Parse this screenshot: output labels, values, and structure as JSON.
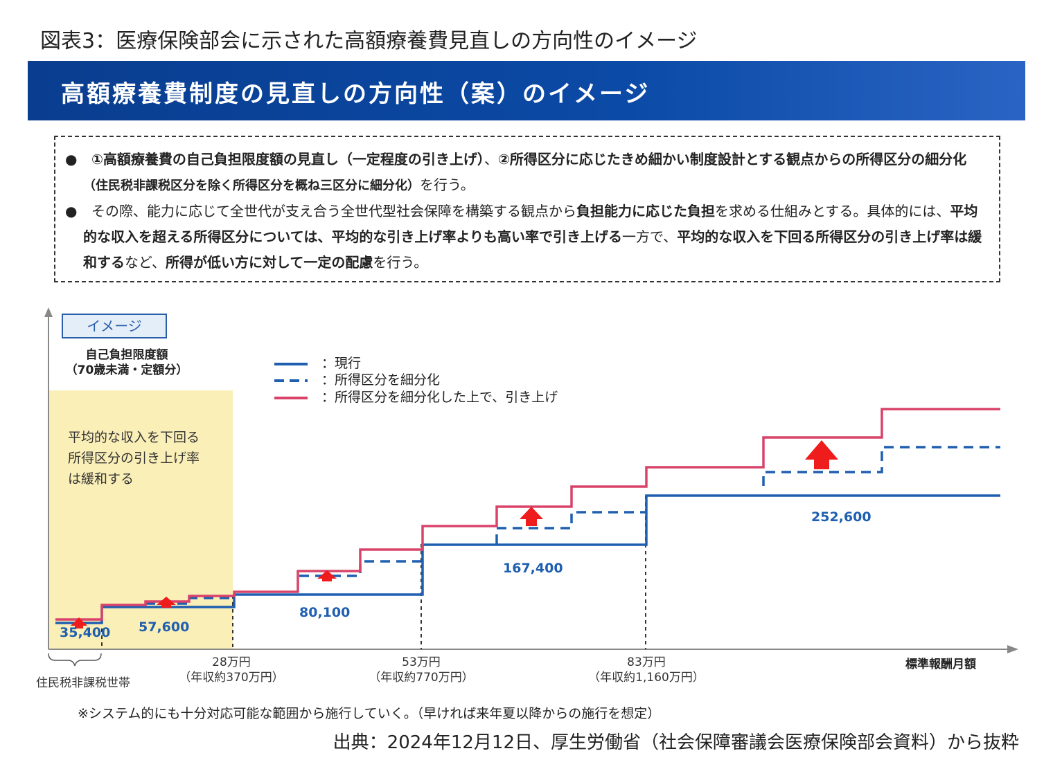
{
  "figure_title": "図表3：医療保険部会に示された高額療養費見直しの方向性のイメージ",
  "banner_title": "高額療養費制度の見直しの方向性（案）のイメージ",
  "notes": [
    {
      "bullet": "●",
      "parts": [
        {
          "text": "①高額療養費の自己負担限度額の見直し（一定程度の引き上げ）",
          "style": "b"
        },
        {
          "text": "、",
          "style": ""
        },
        {
          "text": "②所得区分に応じたきめ細かい制度設計とする観点からの所得区分の細分化",
          "style": "b"
        },
        {
          "text": "（住民税非課税区分を除く所得区分を概ね三区分に細分化）",
          "style": "small-b"
        },
        {
          "text": "を行う。",
          "style": ""
        }
      ]
    },
    {
      "bullet": "●",
      "parts": [
        {
          "text": "その際、能力に応じて全世代が支え合う全世代型社会保障を構築する観点から",
          "style": ""
        },
        {
          "text": "負担能力に応じた負担",
          "style": "b"
        },
        {
          "text": "を求める仕組みとする。具体的には、",
          "style": ""
        },
        {
          "text": "平均的な収入を超える所得区分については、平均的な引き上げ率よりも高い率で引き上げる",
          "style": "b"
        },
        {
          "text": "一方で、",
          "style": ""
        },
        {
          "text": "平均的な収入を下回る所得区分の引き上げ率は緩和する",
          "style": "b"
        },
        {
          "text": "など、",
          "style": ""
        },
        {
          "text": "所得が低い方に対して一定の配慮",
          "style": "b"
        },
        {
          "text": "を行う。",
          "style": ""
        }
      ]
    }
  ],
  "chart": {
    "image_label": "イメージ",
    "y_label_line1": "自己負担限度額",
    "y_label_line2": "（70歳未満・定額分）",
    "x_label": "標準報酬月額",
    "legend": [
      {
        "label": "：現行",
        "style": "solid",
        "color": "#1f5fb0"
      },
      {
        "label": "：所得区分を細分化",
        "style": "dashed",
        "color": "#1f5fb0"
      },
      {
        "label": "：所得区分を細分化した上で、引き上げ",
        "style": "solid",
        "color": "#d9436a"
      }
    ],
    "highlight_text": [
      "平均的な収入を下回る",
      "所得区分の引き上げ率",
      "は緩和する"
    ],
    "highlight_color": "#fbefb8",
    "value_labels": [
      "35,400",
      "57,600",
      "80,100",
      "167,400",
      "252,600"
    ],
    "ticks": [
      {
        "line1": "28万円",
        "line2": "（年収約370万円）"
      },
      {
        "line1": "53万円",
        "line2": "（年収約770万円）"
      },
      {
        "line1": "83万円",
        "line2": "（年収約1,160万円）"
      }
    ],
    "brace_label": "住民税非課税世帯",
    "colors": {
      "current": "#1f5fb0",
      "raised": "#d9436a",
      "arrow": "#ee1c1c",
      "axis": "#888888"
    }
  },
  "footnote": "※システム的にも十分対応可能な範囲から施行していく。（早ければ来年夏以降からの施行を想定）",
  "source": "出典：2024年12月12日、厚生労働省（社会保障審議会医療保険部会資料）から抜粋"
}
